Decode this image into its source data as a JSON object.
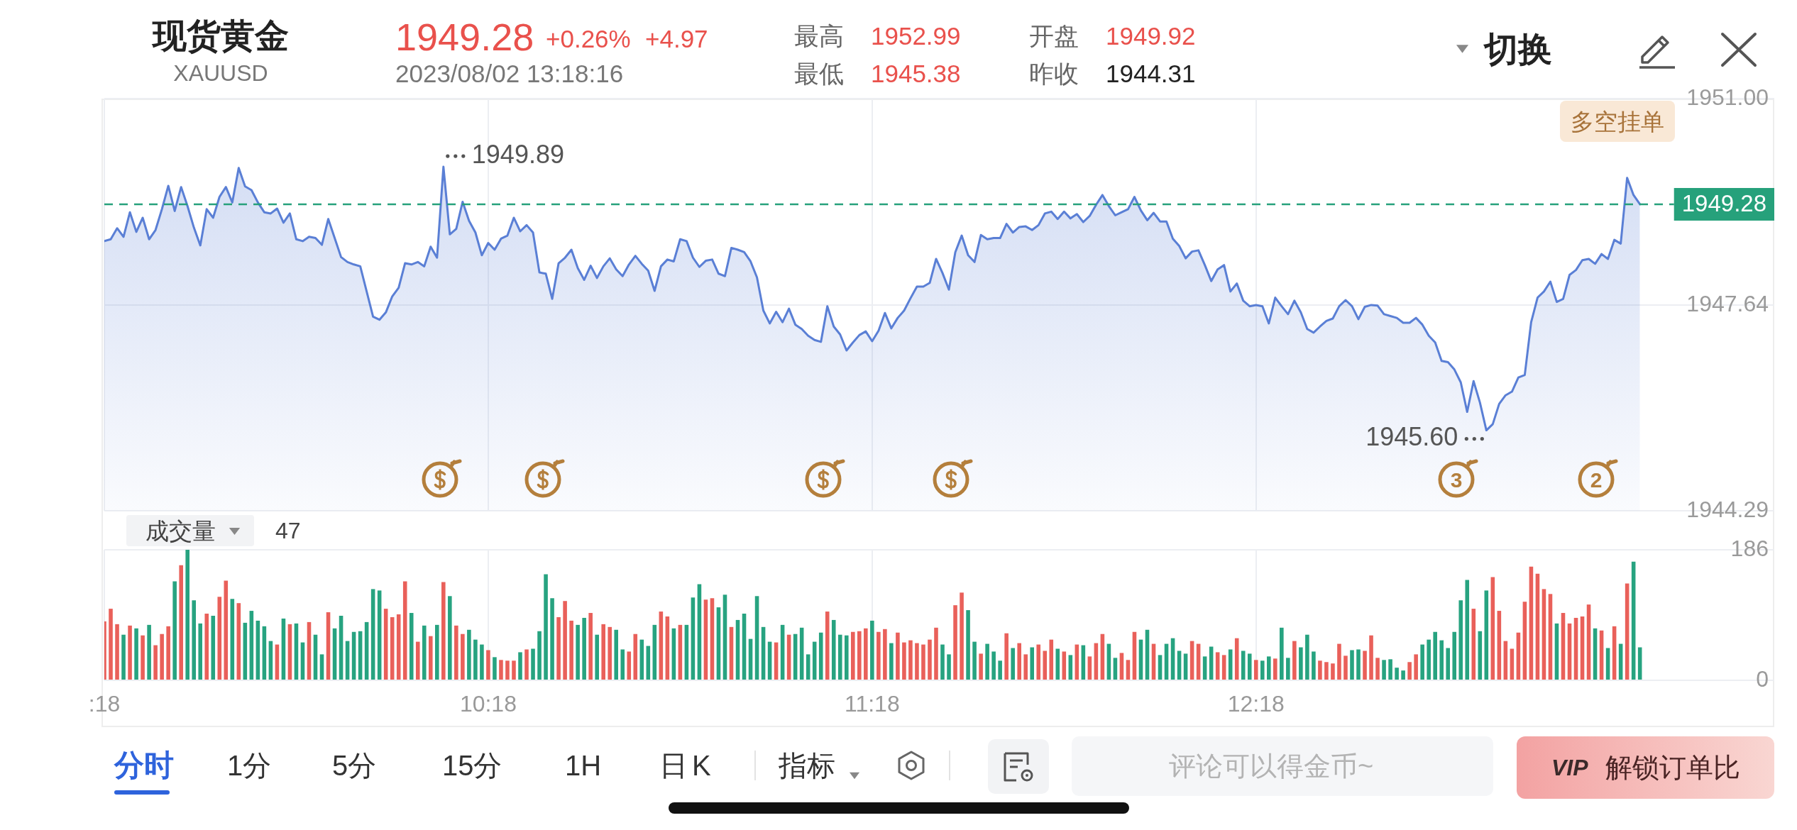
{
  "chart_data": [
    {
      "type": "other",
      "title": "现货黄金",
      "subtitle": "XAUUSD",
      "annotations": [
        "1949.28",
        "+0.26%",
        "+4.97",
        "2023/08/02 13:18:16",
        "最高",
        "1952.99",
        "最低",
        "1945.38",
        "开盘",
        "1949.92",
        "昨收",
        "1944.31",
        "切换"
      ]
    },
    {
      "type": "area",
      "x": [
        "2023-08-02T09:18",
        "2023-08-02T09:19",
        "2023-08-02T09:20",
        "2023-08-02T09:21",
        "2023-08-02T09:22",
        "2023-08-02T09:23",
        "2023-08-02T09:24",
        "2023-08-02T09:25",
        "2023-08-02T09:26",
        "2023-08-02T09:27",
        "2023-08-02T09:28",
        "2023-08-02T09:29",
        "2023-08-02T09:30",
        "2023-08-02T09:31",
        "2023-08-02T09:32",
        "2023-08-02T09:33",
        "2023-08-02T09:34",
        "2023-08-02T09:35",
        "2023-08-02T09:36",
        "2023-08-02T09:37",
        "2023-08-02T09:38",
        "2023-08-02T09:39",
        "2023-08-02T09:40",
        "2023-08-02T09:41",
        "2023-08-02T09:42",
        "2023-08-02T09:43",
        "2023-08-02T09:44",
        "2023-08-02T09:45",
        "2023-08-02T09:46",
        "2023-08-02T09:47",
        "2023-08-02T09:48",
        "2023-08-02T09:49",
        "2023-08-02T09:50",
        "2023-08-02T09:51",
        "2023-08-02T09:52",
        "2023-08-02T09:53",
        "2023-08-02T09:54",
        "2023-08-02T09:55",
        "2023-08-02T09:56",
        "2023-08-02T09:57",
        "2023-08-02T09:58",
        "2023-08-02T09:59",
        "2023-08-02T10:00",
        "2023-08-02T10:01",
        "2023-08-02T10:02",
        "2023-08-02T10:03",
        "2023-08-02T10:04",
        "2023-08-02T10:05",
        "2023-08-02T10:06",
        "2023-08-02T10:07",
        "2023-08-02T10:08",
        "2023-08-02T10:09",
        "2023-08-02T10:10",
        "2023-08-02T10:11",
        "2023-08-02T10:12",
        "2023-08-02T10:13",
        "2023-08-02T10:14",
        "2023-08-02T10:15",
        "2023-08-02T10:16",
        "2023-08-02T10:17",
        "2023-08-02T10:18",
        "2023-08-02T10:19",
        "2023-08-02T10:20",
        "2023-08-02T10:21",
        "2023-08-02T10:22",
        "2023-08-02T10:23",
        "2023-08-02T10:24",
        "2023-08-02T10:25",
        "2023-08-02T10:26",
        "2023-08-02T10:27",
        "2023-08-02T10:28",
        "2023-08-02T10:29",
        "2023-08-02T10:30",
        "2023-08-02T10:31",
        "2023-08-02T10:32",
        "2023-08-02T10:33",
        "2023-08-02T10:34",
        "2023-08-02T10:35",
        "2023-08-02T10:36",
        "2023-08-02T10:37",
        "2023-08-02T10:38",
        "2023-08-02T10:39",
        "2023-08-02T10:40",
        "2023-08-02T10:41",
        "2023-08-02T10:42",
        "2023-08-02T10:43",
        "2023-08-02T10:44",
        "2023-08-02T10:45",
        "2023-08-02T10:46",
        "2023-08-02T10:47",
        "2023-08-02T10:48",
        "2023-08-02T10:49",
        "2023-08-02T10:50",
        "2023-08-02T10:51",
        "2023-08-02T10:52",
        "2023-08-02T10:53",
        "2023-08-02T10:54",
        "2023-08-02T10:55",
        "2023-08-02T10:56",
        "2023-08-02T10:57",
        "2023-08-02T10:58",
        "2023-08-02T10:59",
        "2023-08-02T11:00",
        "2023-08-02T11:01",
        "2023-08-02T11:02",
        "2023-08-02T11:03",
        "2023-08-02T11:04",
        "2023-08-02T11:05",
        "2023-08-02T11:06",
        "2023-08-02T11:07",
        "2023-08-02T11:08",
        "2023-08-02T11:09",
        "2023-08-02T11:10",
        "2023-08-02T11:11",
        "2023-08-02T11:12",
        "2023-08-02T11:13",
        "2023-08-02T11:14",
        "2023-08-02T11:15",
        "2023-08-02T11:16",
        "2023-08-02T11:17",
        "2023-08-02T11:18",
        "2023-08-02T11:19",
        "2023-08-02T11:20",
        "2023-08-02T11:21",
        "2023-08-02T11:22",
        "2023-08-02T11:23",
        "2023-08-02T11:24",
        "2023-08-02T11:25",
        "2023-08-02T11:26",
        "2023-08-02T11:27",
        "2023-08-02T11:28",
        "2023-08-02T11:29",
        "2023-08-02T11:30",
        "2023-08-02T11:31",
        "2023-08-02T11:32",
        "2023-08-02T11:33",
        "2023-08-02T11:34",
        "2023-08-02T11:35",
        "2023-08-02T11:36",
        "2023-08-02T11:37",
        "2023-08-02T11:38",
        "2023-08-02T11:39",
        "2023-08-02T11:40",
        "2023-08-02T11:41",
        "2023-08-02T11:42",
        "2023-08-02T11:43",
        "2023-08-02T11:44",
        "2023-08-02T11:45",
        "2023-08-02T11:46",
        "2023-08-02T11:47",
        "2023-08-02T11:48",
        "2023-08-02T11:49",
        "2023-08-02T11:50",
        "2023-08-02T11:51",
        "2023-08-02T11:52",
        "2023-08-02T11:53",
        "2023-08-02T11:54",
        "2023-08-02T11:55",
        "2023-08-02T11:56",
        "2023-08-02T11:57",
        "2023-08-02T11:58",
        "2023-08-02T11:59",
        "2023-08-02T12:00",
        "2023-08-02T12:01",
        "2023-08-02T12:02",
        "2023-08-02T12:03",
        "2023-08-02T12:04",
        "2023-08-02T12:05",
        "2023-08-02T12:06",
        "2023-08-02T12:07",
        "2023-08-02T12:08",
        "2023-08-02T12:09",
        "2023-08-02T12:10",
        "2023-08-02T12:11",
        "2023-08-02T12:12",
        "2023-08-02T12:13",
        "2023-08-02T12:14",
        "2023-08-02T12:15",
        "2023-08-02T12:16",
        "2023-08-02T12:17",
        "2023-08-02T12:18",
        "2023-08-02T12:19",
        "2023-08-02T12:20",
        "2023-08-02T12:21",
        "2023-08-02T12:22",
        "2023-08-02T12:23",
        "2023-08-02T12:24",
        "2023-08-02T12:25",
        "2023-08-02T12:26",
        "2023-08-02T12:27",
        "2023-08-02T12:28",
        "2023-08-02T12:29",
        "2023-08-02T12:30",
        "2023-08-02T12:31",
        "2023-08-02T12:32",
        "2023-08-02T12:33",
        "2023-08-02T12:34",
        "2023-08-02T12:35",
        "2023-08-02T12:36",
        "2023-08-02T12:37",
        "2023-08-02T12:38",
        "2023-08-02T12:39",
        "2023-08-02T12:40",
        "2023-08-02T12:41",
        "2023-08-02T12:42",
        "2023-08-02T12:43",
        "2023-08-02T12:44",
        "2023-08-02T12:45",
        "2023-08-02T12:46",
        "2023-08-02T12:47",
        "2023-08-02T12:48",
        "2023-08-02T12:49",
        "2023-08-02T12:50",
        "2023-08-02T12:51",
        "2023-08-02T12:52",
        "2023-08-02T12:53",
        "2023-08-02T12:54",
        "2023-08-02T12:55",
        "2023-08-02T12:56",
        "2023-08-02T12:57",
        "2023-08-02T12:58",
        "2023-08-02T12:59",
        "2023-08-02T13:00",
        "2023-08-02T13:01",
        "2023-08-02T13:02",
        "2023-08-02T13:03",
        "2023-08-02T13:04",
        "2023-08-02T13:05",
        "2023-08-02T13:06",
        "2023-08-02T13:07",
        "2023-08-02T13:08",
        "2023-08-02T13:09",
        "2023-08-02T13:10",
        "2023-08-02T13:11",
        "2023-08-02T13:12",
        "2023-08-02T13:13",
        "2023-08-02T13:14",
        "2023-08-02T13:15",
        "2023-08-02T13:16",
        "2023-08-02T13:17",
        "2023-08-02T13:18"
      ],
      "values": [
        1948.68,
        1948.71,
        1948.89,
        1948.75,
        1949.15,
        1948.83,
        1949.06,
        1948.71,
        1948.86,
        1949.2,
        1949.58,
        1949.17,
        1949.56,
        1949.25,
        1948.9,
        1948.61,
        1949.2,
        1949.06,
        1949.4,
        1949.56,
        1949.31,
        1949.87,
        1949.57,
        1949.51,
        1949.31,
        1949.15,
        1949.13,
        1949.21,
        1948.98,
        1949.13,
        1948.71,
        1948.68,
        1948.75,
        1948.73,
        1948.62,
        1949.04,
        1948.73,
        1948.42,
        1948.34,
        1948.3,
        1948.27,
        1947.86,
        1947.45,
        1947.4,
        1947.52,
        1947.78,
        1947.92,
        1948.32,
        1948.3,
        1948.34,
        1948.27,
        1948.59,
        1948.41,
        1949.89,
        1948.79,
        1948.88,
        1949.32,
        1949.01,
        1948.82,
        1948.45,
        1948.65,
        1948.54,
        1948.72,
        1948.77,
        1949.06,
        1948.84,
        1948.94,
        1948.82,
        1948.17,
        1948.15,
        1947.74,
        1948.32,
        1948.41,
        1948.54,
        1948.24,
        1948.05,
        1948.28,
        1948.08,
        1948.27,
        1948.4,
        1948.22,
        1948.11,
        1948.3,
        1948.44,
        1948.31,
        1948.2,
        1947.87,
        1948.27,
        1948.38,
        1948.35,
        1948.71,
        1948.68,
        1948.41,
        1948.26,
        1948.36,
        1948.38,
        1948.15,
        1948.11,
        1948.57,
        1948.54,
        1948.5,
        1948.35,
        1948.09,
        1947.55,
        1947.34,
        1947.53,
        1947.36,
        1947.58,
        1947.32,
        1947.25,
        1947.14,
        1947.07,
        1947.04,
        1947.62,
        1947.29,
        1947.16,
        1946.9,
        1947.03,
        1947.15,
        1947.21,
        1947.05,
        1947.22,
        1947.51,
        1947.26,
        1947.43,
        1947.55,
        1947.75,
        1947.94,
        1947.94,
        1948.0,
        1948.39,
        1948.16,
        1947.89,
        1948.5,
        1948.77,
        1948.45,
        1948.34,
        1948.78,
        1948.71,
        1948.73,
        1948.73,
        1948.96,
        1948.82,
        1948.91,
        1948.92,
        1948.86,
        1948.94,
        1949.13,
        1949.16,
        1949.04,
        1949.16,
        1949.05,
        1949.12,
        1948.99,
        1949.09,
        1949.27,
        1949.43,
        1949.25,
        1949.1,
        1949.15,
        1949.2,
        1949.4,
        1949.18,
        1949.02,
        1949.14,
        1949.0,
        1949.0,
        1948.72,
        1948.6,
        1948.4,
        1948.51,
        1948.53,
        1948.29,
        1948.03,
        1948.22,
        1948.29,
        1947.86,
        1947.99,
        1947.71,
        1947.62,
        1947.64,
        1947.62,
        1947.34,
        1947.76,
        1947.62,
        1947.49,
        1947.71,
        1947.52,
        1947.25,
        1947.19,
        1947.29,
        1947.38,
        1947.42,
        1947.62,
        1947.72,
        1947.62,
        1947.41,
        1947.61,
        1947.64,
        1947.63,
        1947.49,
        1947.46,
        1947.43,
        1947.35,
        1947.35,
        1947.43,
        1947.32,
        1947.14,
        1947.03,
        1946.73,
        1946.71,
        1946.59,
        1946.38,
        1945.9,
        1946.4,
        1946.05,
        1945.6,
        1945.7,
        1946.03,
        1946.17,
        1946.23,
        1946.46,
        1946.5,
        1947.36,
        1947.76,
        1947.86,
        1948.02,
        1947.69,
        1947.74,
        1948.13,
        1948.21,
        1948.37,
        1948.39,
        1948.31,
        1948.47,
        1948.39,
        1948.7,
        1948.64,
        1949.71,
        1949.43,
        1949.28
      ],
      "color": "#5a7fd5",
      "xlim": [
        "2023-08-02T09:18",
        "2023-08-02T13:39"
      ],
      "xticks": [
        {
          "value": "2023-08-02T09:18",
          "label": null
        },
        {
          "value": "2023-08-02T10:18",
          "label": null
        },
        {
          "value": "2023-08-02T11:18",
          "label": null
        },
        {
          "value": "2023-08-02T12:18",
          "label": null
        }
      ],
      "ylim": [
        1944.29,
        1951
      ],
      "yticks": [
        1944.29,
        1947.64,
        {
          "value": 1951,
          "label": "1951.00"
        }
      ],
      "grid": true,
      "tick_labels": "y",
      "ref_lines": [
        {
          "axis": "y",
          "value": 1949.28,
          "label": "1949.28",
          "color": "#26a17b",
          "line_style": "dashed"
        }
      ],
      "annotations": [
        {
          "text": "1949.89",
          "x": "2023-08-02T10:11",
          "y": 1949.89
        },
        {
          "text": "1945.60",
          "x": "2023-08-02T12:54",
          "y": 1945.6
        },
        "3",
        "2",
        "多空挂单"
      ]
    },
    {
      "type": "bar",
      "title": "成交量",
      "x": [
        "2023-08-02T09:18",
        "2023-08-02T09:19",
        "2023-08-02T09:20",
        "2023-08-02T09:21",
        "2023-08-02T09:22",
        "2023-08-02T09:23",
        "2023-08-02T09:24",
        "2023-08-02T09:25",
        "2023-08-02T09:26",
        "2023-08-02T09:27",
        "2023-08-02T09:28",
        "2023-08-02T09:29",
        "2023-08-02T09:30",
        "2023-08-02T09:31",
        "2023-08-02T09:32",
        "2023-08-02T09:33",
        "2023-08-02T09:34",
        "2023-08-02T09:35",
        "2023-08-02T09:36",
        "2023-08-02T09:37",
        "2023-08-02T09:38",
        "2023-08-02T09:39",
        "2023-08-02T09:40",
        "2023-08-02T09:41",
        "2023-08-02T09:42",
        "2023-08-02T09:43",
        "2023-08-02T09:44",
        "2023-08-02T09:45",
        "2023-08-02T09:46",
        "2023-08-02T09:47",
        "2023-08-02T09:48",
        "2023-08-02T09:49",
        "2023-08-02T09:50",
        "2023-08-02T09:51",
        "2023-08-02T09:52",
        "2023-08-02T09:53",
        "2023-08-02T09:54",
        "2023-08-02T09:55",
        "2023-08-02T09:56",
        "2023-08-02T09:57",
        "2023-08-02T09:58",
        "2023-08-02T09:59",
        "2023-08-02T10:00",
        "2023-08-02T10:01",
        "2023-08-02T10:02",
        "2023-08-02T10:03",
        "2023-08-02T10:04",
        "2023-08-02T10:05",
        "2023-08-02T10:06",
        "2023-08-02T10:07",
        "2023-08-02T10:08",
        "2023-08-02T10:09",
        "2023-08-02T10:10",
        "2023-08-02T10:11",
        "2023-08-02T10:12",
        "2023-08-02T10:13",
        "2023-08-02T10:14",
        "2023-08-02T10:15",
        "2023-08-02T10:16",
        "2023-08-02T10:17",
        "2023-08-02T10:18",
        "2023-08-02T10:19",
        "2023-08-02T10:20",
        "2023-08-02T10:21",
        "2023-08-02T10:22",
        "2023-08-02T10:23",
        "2023-08-02T10:24",
        "2023-08-02T10:25",
        "2023-08-02T10:26",
        "2023-08-02T10:27",
        "2023-08-02T10:28",
        "2023-08-02T10:29",
        "2023-08-02T10:30",
        "2023-08-02T10:31",
        "2023-08-02T10:32",
        "2023-08-02T10:33",
        "2023-08-02T10:34",
        "2023-08-02T10:35",
        "2023-08-02T10:36",
        "2023-08-02T10:37",
        "2023-08-02T10:38",
        "2023-08-02T10:39",
        "2023-08-02T10:40",
        "2023-08-02T10:41",
        "2023-08-02T10:42",
        "2023-08-02T10:43",
        "2023-08-02T10:44",
        "2023-08-02T10:45",
        "2023-08-02T10:46",
        "2023-08-02T10:47",
        "2023-08-02T10:48",
        "2023-08-02T10:49",
        "2023-08-02T10:50",
        "2023-08-02T10:51",
        "2023-08-02T10:52",
        "2023-08-02T10:53",
        "2023-08-02T10:54",
        "2023-08-02T10:55",
        "2023-08-02T10:56",
        "2023-08-02T10:57",
        "2023-08-02T10:58",
        "2023-08-02T10:59",
        "2023-08-02T11:00",
        "2023-08-02T11:01",
        "2023-08-02T11:02",
        "2023-08-02T11:03",
        "2023-08-02T11:04",
        "2023-08-02T11:05",
        "2023-08-02T11:06",
        "2023-08-02T11:07",
        "2023-08-02T11:08",
        "2023-08-02T11:09",
        "2023-08-02T11:10",
        "2023-08-02T11:11",
        "2023-08-02T11:12",
        "2023-08-02T11:13",
        "2023-08-02T11:14",
        "2023-08-02T11:15",
        "2023-08-02T11:16",
        "2023-08-02T11:17",
        "2023-08-02T11:18",
        "2023-08-02T11:19",
        "2023-08-02T11:20",
        "2023-08-02T11:21",
        "2023-08-02T11:22",
        "2023-08-02T11:23",
        "2023-08-02T11:24",
        "2023-08-02T11:25",
        "2023-08-02T11:26",
        "2023-08-02T11:27",
        "2023-08-02T11:28",
        "2023-08-02T11:29",
        "2023-08-02T11:30",
        "2023-08-02T11:31",
        "2023-08-02T11:32",
        "2023-08-02T11:33",
        "2023-08-02T11:34",
        "2023-08-02T11:35",
        "2023-08-02T11:36",
        "2023-08-02T11:37",
        "2023-08-02T11:38",
        "2023-08-02T11:39",
        "2023-08-02T11:40",
        "2023-08-02T11:41",
        "2023-08-02T11:42",
        "2023-08-02T11:43",
        "2023-08-02T11:44",
        "2023-08-02T11:45",
        "2023-08-02T11:46",
        "2023-08-02T11:47",
        "2023-08-02T11:48",
        "2023-08-02T11:49",
        "2023-08-02T11:50",
        "2023-08-02T11:51",
        "2023-08-02T11:52",
        "2023-08-02T11:53",
        "2023-08-02T11:54",
        "2023-08-02T11:55",
        "2023-08-02T11:56",
        "2023-08-02T11:57",
        "2023-08-02T11:58",
        "2023-08-02T11:59",
        "2023-08-02T12:00",
        "2023-08-02T12:01",
        "2023-08-02T12:02",
        "2023-08-02T12:03",
        "2023-08-02T12:04",
        "2023-08-02T12:05",
        "2023-08-02T12:06",
        "2023-08-02T12:07",
        "2023-08-02T12:08",
        "2023-08-02T12:09",
        "2023-08-02T12:10",
        "2023-08-02T12:11",
        "2023-08-02T12:12",
        "2023-08-02T12:13",
        "2023-08-02T12:14",
        "2023-08-02T12:15",
        "2023-08-02T12:16",
        "2023-08-02T12:17",
        "2023-08-02T12:18",
        "2023-08-02T12:19",
        "2023-08-02T12:20",
        "2023-08-02T12:21",
        "2023-08-02T12:22",
        "2023-08-02T12:23",
        "2023-08-02T12:24",
        "2023-08-02T12:25",
        "2023-08-02T12:26",
        "2023-08-02T12:27",
        "2023-08-02T12:28",
        "2023-08-02T12:29",
        "2023-08-02T12:30",
        "2023-08-02T12:31",
        "2023-08-02T12:32",
        "2023-08-02T12:33",
        "2023-08-02T12:34",
        "2023-08-02T12:35",
        "2023-08-02T12:36",
        "2023-08-02T12:37",
        "2023-08-02T12:38",
        "2023-08-02T12:39",
        "2023-08-02T12:40",
        "2023-08-02T12:41",
        "2023-08-02T12:42",
        "2023-08-02T12:43",
        "2023-08-02T12:44",
        "2023-08-02T12:45",
        "2023-08-02T12:46",
        "2023-08-02T12:47",
        "2023-08-02T12:48",
        "2023-08-02T12:49",
        "2023-08-02T12:50",
        "2023-08-02T12:51",
        "2023-08-02T12:52",
        "2023-08-02T12:53",
        "2023-08-02T12:54",
        "2023-08-02T12:55",
        "2023-08-02T12:56",
        "2023-08-02T12:57",
        "2023-08-02T12:58",
        "2023-08-02T12:59",
        "2023-08-02T13:00",
        "2023-08-02T13:01",
        "2023-08-02T13:02",
        "2023-08-02T13:03",
        "2023-08-02T13:04",
        "2023-08-02T13:05",
        "2023-08-02T13:06",
        "2023-08-02T13:07",
        "2023-08-02T13:08",
        "2023-08-02T13:09",
        "2023-08-02T13:10",
        "2023-08-02T13:11",
        "2023-08-02T13:12",
        "2023-08-02T13:13",
        "2023-08-02T13:14",
        "2023-08-02T13:15",
        "2023-08-02T13:16",
        "2023-08-02T13:17",
        "2023-08-02T13:18"
      ],
      "values": [
        84,
        102,
        80,
        65,
        78,
        74,
        64,
        79,
        50,
        66,
        77,
        141,
        164,
        186,
        114,
        81,
        95,
        92,
        119,
        142,
        116,
        110,
        82,
        99,
        85,
        77,
        56,
        51,
        88,
        80,
        81,
        54,
        83,
        65,
        37,
        97,
        74,
        92,
        56,
        69,
        70,
        83,
        130,
        128,
        102,
        90,
        94,
        141,
        96,
        55,
        78,
        63,
        79,
        140,
        120,
        78,
        66,
        72,
        58,
        51,
        43,
        33,
        29,
        28,
        28,
        40,
        44,
        45,
        70,
        151,
        117,
        90,
        113,
        85,
        79,
        89,
        96,
        65,
        80,
        76,
        72,
        44,
        41,
        66,
        58,
        49,
        79,
        98,
        91,
        74,
        79,
        79,
        118,
        137,
        115,
        117,
        104,
        122,
        76,
        86,
        95,
        59,
        120,
        76,
        55,
        54,
        79,
        65,
        66,
        75,
        37,
        55,
        68,
        98,
        86,
        65,
        64,
        69,
        70,
        74,
        85,
        69,
        73,
        53,
        68,
        54,
        57,
        53,
        51,
        58,
        75,
        51,
        37,
        107,
        125,
        100,
        55,
        38,
        52,
        41,
        28,
        67,
        46,
        53,
        37,
        47,
        51,
        42,
        58,
        45,
        41,
        36,
        51,
        50,
        34,
        53,
        66,
        52,
        32,
        39,
        29,
        69,
        58,
        72,
        52,
        36,
        52,
        60,
        42,
        38,
        56,
        52,
        34,
        48,
        40,
        36,
        44,
        60,
        42,
        38,
        29,
        28,
        34,
        31,
        75,
        32,
        56,
        47,
        65,
        41,
        28,
        26,
        24,
        52,
        35,
        43,
        44,
        42,
        64,
        32,
        29,
        30,
        18,
        14,
        26,
        37,
        51,
        58,
        69,
        57,
        46,
        69,
        114,
        143,
        102,
        70,
        128,
        147,
        99,
        56,
        45,
        68,
        112,
        162,
        152,
        130,
        123,
        81,
        96,
        81,
        89,
        91,
        108,
        74,
        71,
        46,
        77,
        52,
        138,
        169,
        47
      ],
      "colors": [
        "#e9605a",
        "#e9605a",
        "#e9605a",
        "#27a380",
        "#e9605a",
        "#27a380",
        "#e9605a",
        "#27a380",
        "#e9605a",
        "#e9605a",
        "#e9605a",
        "#27a380",
        "#e9605a",
        "#27a380",
        "#27a380",
        "#27a380",
        "#e9605a",
        "#27a380",
        "#e9605a",
        "#e9605a",
        "#27a380",
        "#e9605a",
        "#27a380",
        "#27a380",
        "#27a380",
        "#27a380",
        "#27a380",
        "#e9605a",
        "#27a380",
        "#e9605a",
        "#27a380",
        "#27a380",
        "#e9605a",
        "#27a380",
        "#27a380",
        "#e9605a",
        "#27a380",
        "#27a380",
        "#27a380",
        "#27a380",
        "#27a380",
        "#27a380",
        "#27a380",
        "#27a380",
        "#e9605a",
        "#e9605a",
        "#e9605a",
        "#e9605a",
        "#27a380",
        "#e9605a",
        "#27a380",
        "#e9605a",
        "#27a380",
        "#e9605a",
        "#27a380",
        "#e9605a",
        "#e9605a",
        "#27a380",
        "#27a380",
        "#27a380",
        "#e9605a",
        "#27a380",
        "#e9605a",
        "#e9605a",
        "#e9605a",
        "#27a380",
        "#e9605a",
        "#27a380",
        "#27a380",
        "#27a380",
        "#27a380",
        "#e9605a",
        "#e9605a",
        "#e9605a",
        "#27a380",
        "#27a380",
        "#e9605a",
        "#27a380",
        "#e9605a",
        "#e9605a",
        "#27a380",
        "#27a380",
        "#e9605a",
        "#e9605a",
        "#27a380",
        "#27a380",
        "#27a380",
        "#e9605a",
        "#e9605a",
        "#27a380",
        "#e9605a",
        "#27a380",
        "#27a380",
        "#27a380",
        "#e9605a",
        "#e9605a",
        "#27a380",
        "#27a380",
        "#e9605a",
        "#27a380",
        "#27a380",
        "#27a380",
        "#27a380",
        "#27a380",
        "#27a380",
        "#e9605a",
        "#27a380",
        "#e9605a",
        "#27a380",
        "#27a380",
        "#27a380",
        "#27a380",
        "#27a380",
        "#e9605a",
        "#27a380",
        "#27a380",
        "#27a380",
        "#e9605a",
        "#e9605a",
        "#e9605a",
        "#27a380",
        "#e9605a",
        "#e9605a",
        "#27a380",
        "#e9605a",
        "#e9605a",
        "#e9605a",
        "#e9605a",
        "#e9605a",
        "#e9605a",
        "#e9605a",
        "#27a380",
        "#27a380",
        "#e9605a",
        "#e9605a",
        "#27a380",
        "#27a380",
        "#e9605a",
        "#27a380",
        "#27a380",
        "#27a380",
        "#e9605a",
        "#27a380",
        "#e9605a",
        "#e9605a",
        "#27a380",
        "#e9605a",
        "#e9605a",
        "#e9605a",
        "#27a380",
        "#e9605a",
        "#27a380",
        "#e9605a",
        "#27a380",
        "#e9605a",
        "#e9605a",
        "#e9605a",
        "#27a380",
        "#27a380",
        "#e9605a",
        "#e9605a",
        "#e9605a",
        "#27a380",
        "#27a380",
        "#e9605a",
        "#27a380",
        "#27a380",
        "#27a380",
        "#27a380",
        "#27a380",
        "#e9605a",
        "#e9605a",
        "#27a380",
        "#27a380",
        "#e9605a",
        "#e9605a",
        "#27a380",
        "#e9605a",
        "#27a380",
        "#27a380",
        "#e9605a",
        "#27a380",
        "#27a380",
        "#e9605a",
        "#27a380",
        "#27a380",
        "#e9605a",
        "#27a380",
        "#27a380",
        "#27a380",
        "#e9605a",
        "#e9605a",
        "#e9605a",
        "#e9605a",
        "#e9605a",
        "#27a380",
        "#27a380",
        "#e9605a",
        "#e9605a",
        "#e9605a",
        "#27a380",
        "#27a380",
        "#27a380",
        "#27a380",
        "#e9605a",
        "#e9605a",
        "#27a380",
        "#27a380",
        "#27a380",
        "#27a380",
        "#27a380",
        "#27a380",
        "#27a380",
        "#27a380",
        "#e9605a",
        "#27a380",
        "#27a380",
        "#e9605a",
        "#e9605a",
        "#e9605a",
        "#e9605a",
        "#e9605a",
        "#e9605a",
        "#e9605a",
        "#e9605a",
        "#e9605a",
        "#e9605a",
        "#27a380",
        "#e9605a",
        "#e9605a",
        "#e9605a",
        "#e9605a",
        "#e9605a",
        "#27a380",
        "#e9605a",
        "#27a380",
        "#e9605a",
        "#27a380",
        "#e9605a",
        "#27a380",
        "#27a380"
      ],
      "xlim": [
        "2023-08-02T09:18",
        "2023-08-02T13:39"
      ],
      "xticks": [
        {
          "value": "2023-08-02T09:18",
          "label": ":18"
        },
        {
          "value": "2023-08-02T10:18",
          "label": "10:18"
        },
        {
          "value": "2023-08-02T11:18",
          "label": "11:18"
        },
        {
          "value": "2023-08-02T12:18",
          "label": "12:18"
        }
      ],
      "ylim": [
        0,
        186
      ],
      "yticks": [
        0,
        186
      ],
      "grid": true,
      "annotations": [
        "47"
      ]
    },
    {
      "type": "other",
      "annotations": [
        "分时",
        "1分",
        "5分",
        "15分",
        "1H",
        "日K",
        "指标",
        "评论可以得金币~",
        "VIP",
        "解锁订单比"
      ]
    }
  ]
}
